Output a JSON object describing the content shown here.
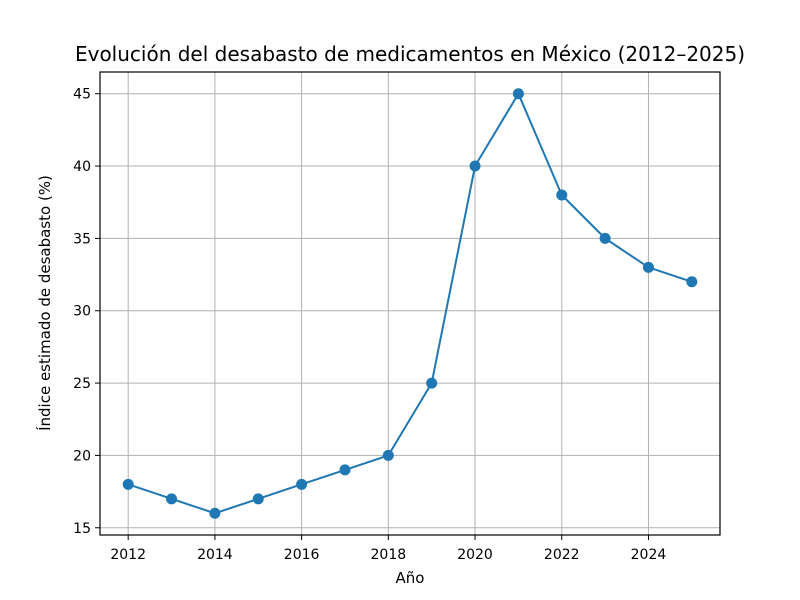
{
  "chart_data": {
    "type": "line",
    "title": "Evolución del desabasto de medicamentos en México (2012–2025)",
    "xlabel": "Año",
    "ylabel": "Índice estimado de desabasto (%)",
    "x": [
      2012,
      2013,
      2014,
      2015,
      2016,
      2017,
      2018,
      2019,
      2020,
      2021,
      2022,
      2023,
      2024,
      2025
    ],
    "series": [
      {
        "values": [
          18,
          17,
          16,
          17,
          18,
          19,
          20,
          25,
          40,
          45,
          38,
          35,
          33,
          32
        ]
      }
    ],
    "xticks": [
      2012,
      2014,
      2016,
      2018,
      2020,
      2022,
      2024
    ],
    "yticks": [
      15,
      20,
      25,
      30,
      35,
      40,
      45
    ],
    "xlim": [
      2011.35,
      2025.65
    ],
    "ylim": [
      14.5,
      46.5
    ],
    "grid": true,
    "line_color": "#1f77b4",
    "marker": "circle"
  }
}
